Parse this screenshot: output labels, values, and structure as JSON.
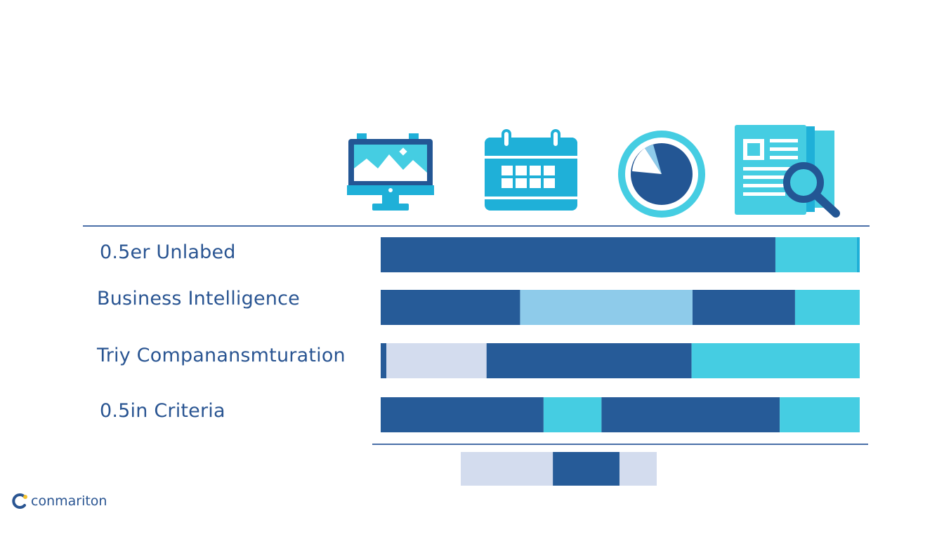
{
  "colors": {
    "navy": "#265b98",
    "cyan": "#45cde2",
    "sky": "#8ecbea",
    "pale": "#d3dcee",
    "icon_blue": "#1fb0d8",
    "icon_dark": "#235694",
    "rule": "#4a6fa8"
  },
  "icons": [
    {
      "name": "monitor-landscape-icon"
    },
    {
      "name": "calendar-icon"
    },
    {
      "name": "pie-chart-icon"
    },
    {
      "name": "document-search-icon"
    }
  ],
  "chart_data": {
    "type": "bar",
    "orientation": "horizontal",
    "stacked": true,
    "xlim": [
      0,
      100
    ],
    "categories": [
      "0.5er Unlabed",
      "Business Intelligence",
      "Triy Companansmturation",
      "0.5in Criteria"
    ],
    "rows": [
      {
        "segments": [
          {
            "value": 82.4,
            "color": "#265b98"
          },
          {
            "value": 17.0,
            "color": "#45cde2"
          },
          {
            "value": 0.6,
            "color": "#1fb0d8"
          }
        ]
      },
      {
        "segments": [
          {
            "value": 29.1,
            "color": "#265b98"
          },
          {
            "value": 36.0,
            "color": "#8ecbea"
          },
          {
            "value": 21.4,
            "color": "#265b98"
          },
          {
            "value": 13.5,
            "color": "#45cde2"
          }
        ]
      },
      {
        "segments": [
          {
            "value": 1.2,
            "color": "#265b98"
          },
          {
            "value": 20.9,
            "color": "#d3dcee"
          },
          {
            "value": 42.8,
            "color": "#265b98"
          },
          {
            "value": 35.1,
            "color": "#45cde2"
          }
        ]
      },
      {
        "segments": [
          {
            "value": 34.0,
            "color": "#265b98"
          },
          {
            "value": 12.1,
            "color": "#45cde2"
          },
          {
            "value": 37.2,
            "color": "#265b98"
          },
          {
            "value": 16.7,
            "color": "#45cde2"
          }
        ]
      }
    ],
    "extra_bar": {
      "segments": [
        {
          "value": 47,
          "color": "#d3dcee"
        },
        {
          "value": 34,
          "color": "#265b98"
        },
        {
          "value": 19,
          "color": "#d3dcee"
        }
      ]
    }
  },
  "brand": {
    "text": "conmariton",
    "icon": "brand-c-logo-icon"
  }
}
